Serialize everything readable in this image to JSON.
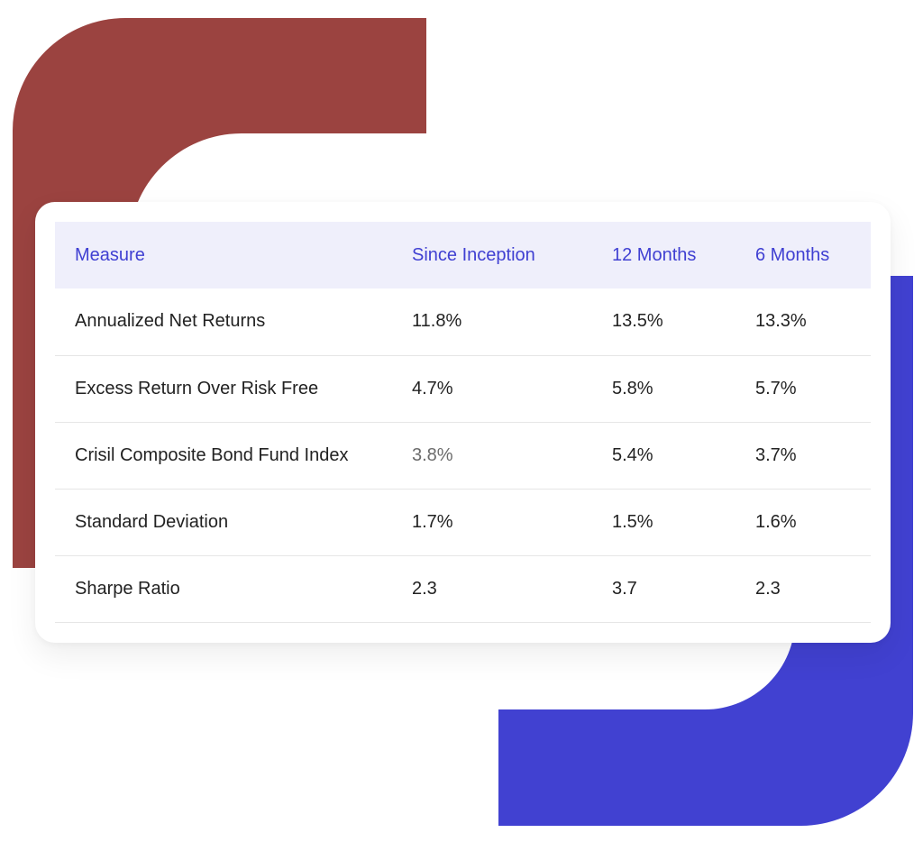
{
  "colors": {
    "red_accent": "#9b4340",
    "blue_accent": "#4141d1",
    "header_bg": "#efeffb",
    "header_text": "#4040d2",
    "body_text": "#222222"
  },
  "table": {
    "headers": [
      "Measure",
      "Since Inception",
      "12 Months",
      "6 Months"
    ],
    "rows": [
      {
        "measure": "Annualized Net Returns",
        "since_inception": "11.8%",
        "twelve_months": "13.5%",
        "six_months": "13.3%"
      },
      {
        "measure": "Excess Return Over Risk Free",
        "since_inception": "4.7%",
        "twelve_months": "5.8%",
        "six_months": "5.7%"
      },
      {
        "measure": "Crisil Composite Bond Fund Index",
        "since_inception": "3.8%",
        "twelve_months": "5.4%",
        "six_months": "3.7%"
      },
      {
        "measure": "Standard Deviation",
        "since_inception": "1.7%",
        "twelve_months": "1.5%",
        "six_months": "1.6%"
      },
      {
        "measure": "Sharpe Ratio",
        "since_inception": "2.3",
        "twelve_months": "3.7",
        "six_months": "2.3"
      }
    ]
  }
}
